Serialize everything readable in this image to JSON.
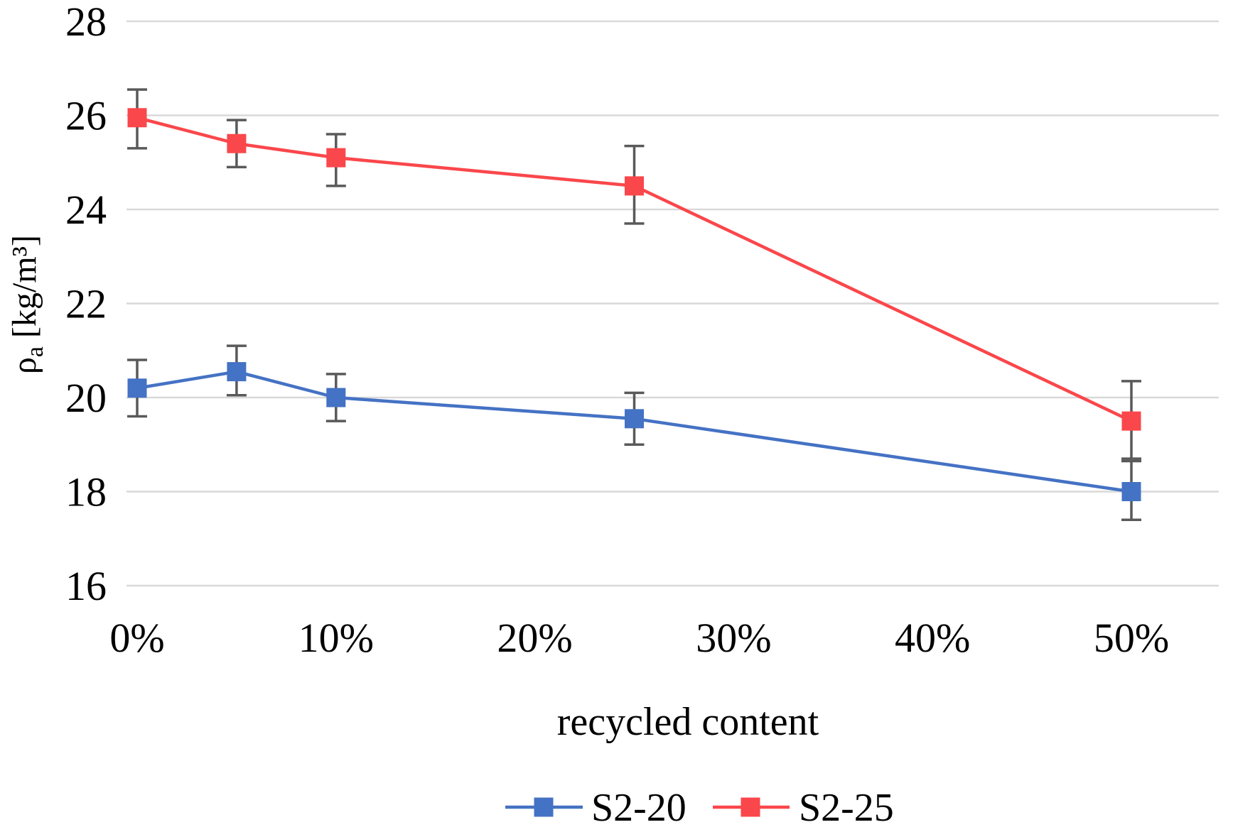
{
  "figure": {
    "background": "#ffffff",
    "text_color": "#000000"
  },
  "chart_data": {
    "type": "line",
    "title": "",
    "xlabel": "recycled content",
    "ylabel": "ρa [kg/m³]",
    "ylabel_parts": {
      "symbol": "ρ",
      "subscript": "a",
      "unit": " [kg/m³]"
    },
    "xlim_pct": [
      -0.5,
      54.4
    ],
    "ylim": [
      16,
      28
    ],
    "grid": "horizontal-only",
    "gridline_color": "#D9D9D9",
    "error_bar_color": "#595959",
    "legend_position": "bottom-center",
    "marker": "square",
    "yticks": [
      16,
      18,
      20,
      22,
      24,
      26,
      28
    ],
    "xticks": [
      {
        "v": 0,
        "label": "0%"
      },
      {
        "v": 10,
        "label": "10%"
      },
      {
        "v": 20,
        "label": "20%"
      },
      {
        "v": 30,
        "label": "30%"
      },
      {
        "v": 40,
        "label": "40%"
      },
      {
        "v": 50,
        "label": "50%"
      }
    ],
    "series": [
      {
        "name": "S2-20",
        "color": "#4472C4",
        "x_pct": [
          0,
          5,
          10,
          25,
          50
        ],
        "y": [
          20.2,
          20.55,
          20.0,
          19.55,
          18.0
        ],
        "err_lo": [
          19.6,
          20.05,
          19.5,
          19.0,
          17.4
        ],
        "err_hi": [
          20.8,
          21.1,
          20.5,
          20.1,
          18.65
        ]
      },
      {
        "name": "S2-25",
        "color": "#FA474B",
        "x_pct": [
          0,
          5,
          10,
          25,
          50
        ],
        "y": [
          25.95,
          25.4,
          25.1,
          24.5,
          19.5
        ],
        "err_lo": [
          25.3,
          24.9,
          24.5,
          23.7,
          18.7
        ],
        "err_hi": [
          26.55,
          25.9,
          25.6,
          25.35,
          20.35
        ]
      }
    ]
  },
  "legend": {
    "items": [
      {
        "label": "S2-20"
      },
      {
        "label": "S2-25"
      }
    ]
  }
}
